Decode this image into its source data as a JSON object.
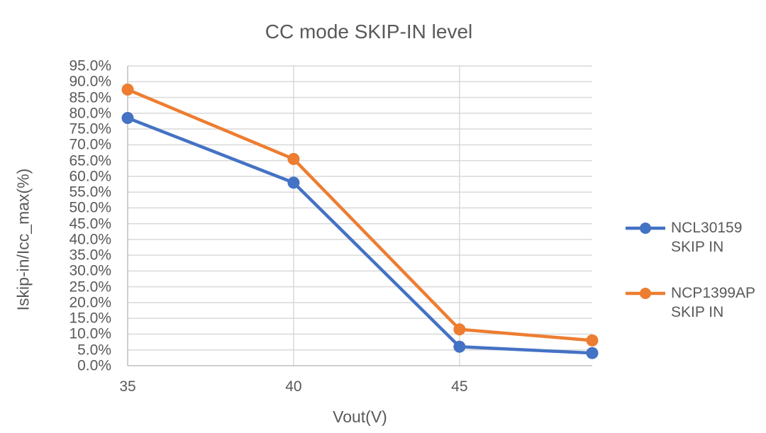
{
  "chart_data": {
    "type": "line",
    "title": "CC mode SKIP-IN level",
    "xlabel": "Vout(V)",
    "ylabel": "Iskip-in/Icc_max(%)",
    "x": [
      35,
      40,
      45,
      49
    ],
    "xlim": [
      35,
      49
    ],
    "ylim": [
      0,
      95
    ],
    "grid": true,
    "legend_position": "right",
    "xticks": {
      "values": [
        35,
        40,
        45
      ],
      "labels": [
        "35",
        "40",
        "45"
      ]
    },
    "yticks": {
      "values": [
        0,
        5,
        10,
        15,
        20,
        25,
        30,
        35,
        40,
        45,
        50,
        55,
        60,
        65,
        70,
        75,
        80,
        85,
        90,
        95
      ],
      "labels": [
        "0.0%",
        "5.0%",
        "10.0%",
        "15.0%",
        "20.0%",
        "25.0%",
        "30.0%",
        "35.0%",
        "40.0%",
        "45.0%",
        "50.0%",
        "55.0%",
        "60.0%",
        "65.0%",
        "70.0%",
        "75.0%",
        "80.0%",
        "85.0%",
        "90.0%",
        "95.0%"
      ]
    },
    "series": [
      {
        "name": "NCL30159 SKIP IN",
        "legend_lines": [
          "NCL30159",
          "SKIP IN"
        ],
        "color": "#4472C4",
        "marker": "circle",
        "values": [
          78.5,
          58.0,
          6.0,
          4.0
        ]
      },
      {
        "name": "NCP1399AP SKIP IN",
        "legend_lines": [
          "NCP1399AP",
          "SKIP IN"
        ],
        "color": "#ED7D31",
        "marker": "circle",
        "values": [
          87.5,
          65.5,
          11.5,
          8.0
        ]
      }
    ],
    "colors": {
      "text": "#595959",
      "gridline": "#D9D9D9",
      "axis_line": "#BFBFBF",
      "background": "#FFFFFF"
    }
  }
}
